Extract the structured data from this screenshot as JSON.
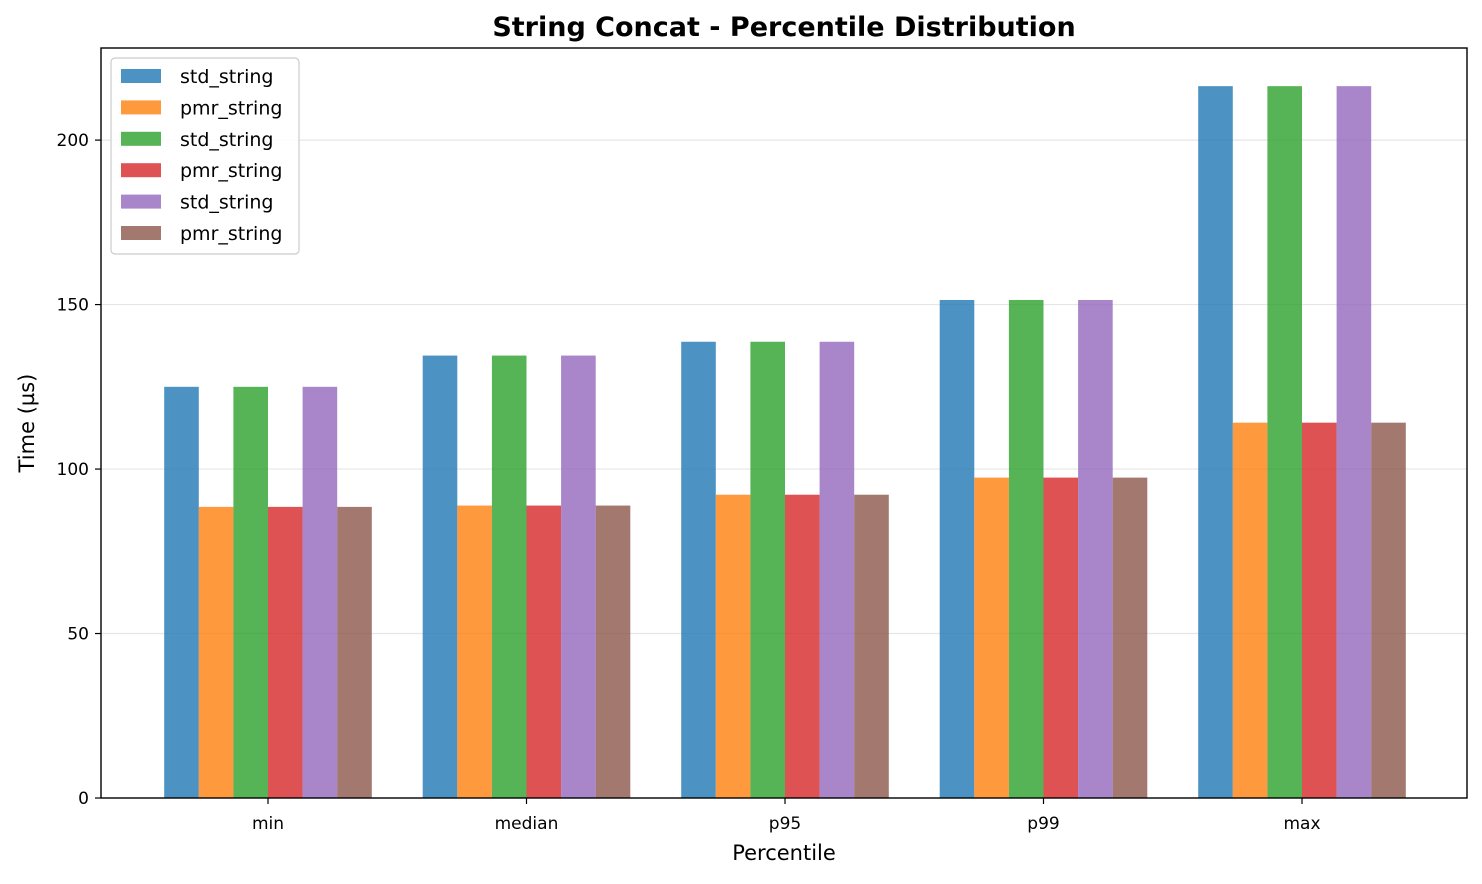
{
  "chart_data": {
    "type": "bar",
    "title": "String Concat - Percentile Distribution",
    "xlabel": "Percentile",
    "ylabel": "Time (µs)",
    "ylim": [
      0,
      228
    ],
    "yticks": [
      0,
      50,
      100,
      150,
      200
    ],
    "grid": "y",
    "legend_position": "top-left",
    "categories": [
      "min",
      "median",
      "p95",
      "p99",
      "max"
    ],
    "series": [
      {
        "name": "std_string",
        "color": "#1f77b4",
        "values": [
          125.0,
          134.5,
          138.7,
          151.4,
          216.4
        ]
      },
      {
        "name": "pmr_string",
        "color": "#ff7f0e",
        "values": [
          88.5,
          88.9,
          92.2,
          97.4,
          114.1
        ]
      },
      {
        "name": "std_string",
        "color": "#2ca02c",
        "values": [
          125.0,
          134.5,
          138.7,
          151.4,
          216.4
        ]
      },
      {
        "name": "pmr_string",
        "color": "#d62728",
        "values": [
          88.5,
          88.9,
          92.2,
          97.4,
          114.1
        ]
      },
      {
        "name": "std_string",
        "color": "#9467bd",
        "values": [
          125.0,
          134.5,
          138.7,
          151.4,
          216.4
        ]
      },
      {
        "name": "pmr_string",
        "color": "#8c564b",
        "values": [
          88.5,
          88.9,
          92.2,
          97.4,
          114.1
        ]
      }
    ]
  }
}
